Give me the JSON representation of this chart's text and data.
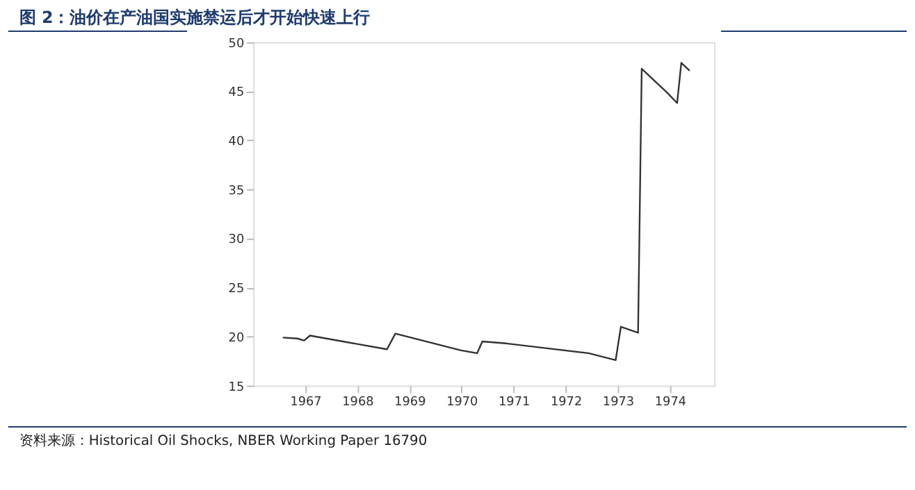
{
  "chart_data": {
    "type": "line",
    "title": "图 2：油价在产油国实施禁运后才开始快速上行",
    "annotations": [
      "资料来源：Historical Oil Shocks, NBER Working Paper 16790"
    ],
    "x": [
      1966.57,
      1966.85,
      1966.98,
      1967.09,
      1968.57,
      1968.73,
      1969.98,
      1970.3,
      1970.4,
      1970.86,
      1972.44,
      1972.96,
      1973.06,
      1973.39,
      1973.46,
      1973.94,
      1974.14,
      1974.22,
      1974.38
    ],
    "series": [
      {
        "color": "#333333",
        "values": [
          19.9,
          19.8,
          19.6,
          20.1,
          18.7,
          20.3,
          18.6,
          18.3,
          19.5,
          19.3,
          18.3,
          17.6,
          21.0,
          20.4,
          47.3,
          44.9,
          43.8,
          47.9,
          47.1
        ]
      }
    ],
    "xlim": [
      1966.0,
      1974.85
    ],
    "xticks": [
      1967,
      1968,
      1969,
      1970,
      1971,
      1972,
      1973,
      1974
    ],
    "ylim": [
      15,
      50
    ],
    "yticks": [
      15,
      20,
      25,
      30,
      35,
      40,
      45,
      50
    ],
    "grid": false,
    "marker": "none",
    "line_style": "solid"
  }
}
